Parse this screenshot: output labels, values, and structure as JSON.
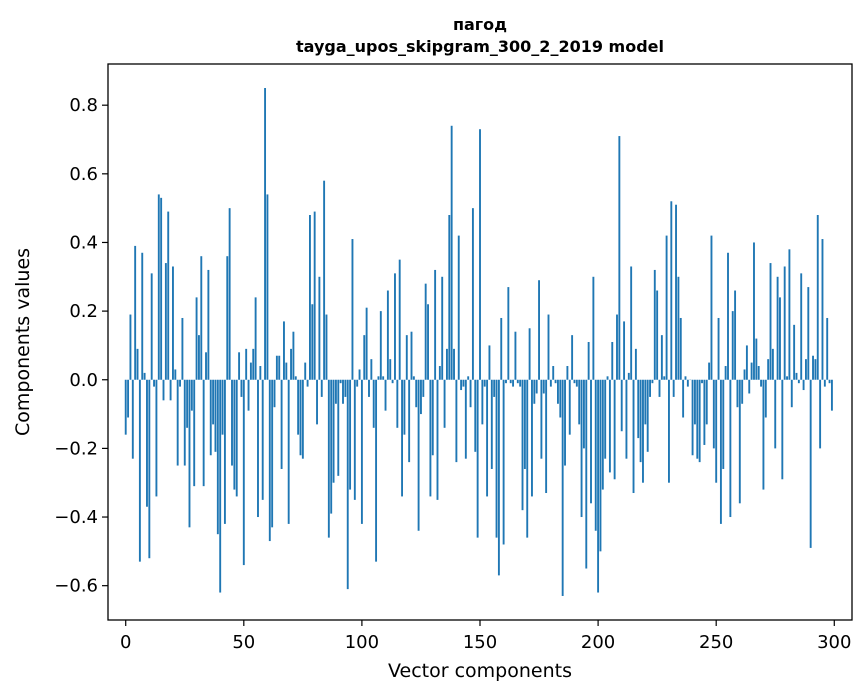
{
  "chart_data": {
    "type": "bar",
    "title_line1": "пагод",
    "title_line2": "tayga_upos_skipgram_300_2_2019 model",
    "xlabel": "Vector components",
    "ylabel": "Components values",
    "xlim": [
      -7.5,
      307.5
    ],
    "ylim": [
      -0.7,
      0.92
    ],
    "xticks": [
      0,
      50,
      100,
      150,
      200,
      250,
      300
    ],
    "xtick_labels": [
      "0",
      "50",
      "100",
      "150",
      "200",
      "250",
      "300"
    ],
    "yticks": [
      -0.6,
      -0.4,
      -0.2,
      0.0,
      0.2,
      0.4,
      0.6,
      0.8
    ],
    "ytick_labels": [
      "−0.6",
      "−0.4",
      "−0.2",
      "0.0",
      "0.2",
      "0.4",
      "0.6",
      "0.8"
    ],
    "bar_color": "#1f77b4",
    "series": [
      {
        "name": "components",
        "values": [
          -0.16,
          -0.11,
          0.19,
          -0.23,
          0.39,
          0.09,
          -0.53,
          0.37,
          0.02,
          -0.37,
          -0.52,
          0.31,
          -0.02,
          -0.34,
          0.54,
          0.53,
          -0.06,
          0.34,
          0.49,
          -0.06,
          0.33,
          0.03,
          -0.25,
          -0.02,
          0.18,
          -0.25,
          -0.14,
          -0.43,
          -0.09,
          -0.31,
          0.24,
          0.13,
          0.36,
          -0.31,
          0.08,
          0.32,
          -0.22,
          -0.13,
          -0.21,
          -0.45,
          -0.62,
          -0.16,
          -0.42,
          0.36,
          0.5,
          -0.25,
          -0.32,
          -0.34,
          0.08,
          -0.05,
          -0.54,
          0.09,
          -0.09,
          0.05,
          0.09,
          0.24,
          -0.4,
          0.04,
          -0.35,
          0.85,
          0.54,
          -0.47,
          -0.43,
          -0.08,
          0.07,
          0.07,
          -0.26,
          0.17,
          0.05,
          -0.42,
          0.09,
          0.14,
          0.01,
          -0.16,
          -0.22,
          -0.23,
          0.05,
          -0.02,
          0.48,
          0.22,
          0.49,
          -0.13,
          0.3,
          -0.05,
          0.58,
          0.19,
          -0.46,
          -0.39,
          -0.3,
          -0.07,
          -0.28,
          -0.01,
          -0.07,
          -0.05,
          -0.61,
          -0.32,
          0.41,
          -0.35,
          -0.02,
          0.03,
          -0.42,
          0.13,
          0.21,
          -0.05,
          0.06,
          -0.14,
          -0.53,
          0.01,
          0.2,
          0.01,
          -0.09,
          0.26,
          0.06,
          -0.01,
          0.31,
          -0.14,
          0.35,
          -0.34,
          -0.16,
          0.13,
          -0.24,
          0.14,
          0.01,
          -0.08,
          -0.44,
          -0.1,
          -0.05,
          0.28,
          0.22,
          -0.34,
          -0.22,
          0.32,
          -0.35,
          0.04,
          0.3,
          -0.14,
          0.09,
          0.48,
          0.74,
          0.09,
          -0.24,
          0.42,
          -0.03,
          -0.02,
          -0.23,
          0.01,
          -0.08,
          0.5,
          -0.21,
          -0.46,
          0.73,
          -0.13,
          -0.02,
          -0.34,
          0.1,
          -0.26,
          -0.05,
          -0.46,
          -0.57,
          0.18,
          -0.48,
          -0.01,
          0.27,
          -0.01,
          -0.02,
          0.14,
          -0.01,
          -0.02,
          -0.38,
          -0.26,
          -0.46,
          0.15,
          -0.34,
          -0.07,
          -0.04,
          0.29,
          -0.23,
          -0.04,
          -0.33,
          0.19,
          -0.02,
          0.04,
          -0.01,
          -0.07,
          -0.11,
          -0.63,
          -0.25,
          0.04,
          -0.16,
          0.13,
          -0.01,
          -0.02,
          -0.13,
          -0.4,
          -0.2,
          -0.55,
          0.11,
          -0.36,
          0.3,
          -0.44,
          -0.62,
          -0.5,
          -0.32,
          -0.23,
          0.01,
          -0.27,
          0.11,
          -0.29,
          0.19,
          0.71,
          -0.15,
          0.17,
          -0.23,
          0.02,
          0.33,
          -0.33,
          0.09,
          -0.17,
          -0.24,
          -0.3,
          -0.13,
          -0.21,
          -0.05,
          -0.01,
          0.32,
          0.26,
          -0.05,
          0.13,
          0.01,
          0.42,
          -0.3,
          0.52,
          -0.05,
          0.51,
          0.3,
          0.18,
          -0.11,
          0.01,
          -0.02,
          0.0,
          -0.22,
          -0.13,
          -0.23,
          -0.24,
          -0.01,
          -0.19,
          -0.13,
          0.05,
          0.42,
          -0.2,
          -0.3,
          0.18,
          -0.42,
          -0.26,
          0.04,
          0.37,
          -0.4,
          0.2,
          0.26,
          -0.08,
          -0.36,
          -0.07,
          0.03,
          0.1,
          -0.04,
          0.05,
          0.4,
          0.12,
          0.04,
          -0.02,
          -0.32,
          -0.11,
          0.06,
          0.34,
          0.09,
          -0.2,
          0.3,
          0.24,
          -0.29,
          0.33,
          0.01,
          0.38,
          -0.08,
          0.16,
          0.02,
          -0.01,
          0.31,
          -0.03,
          0.06,
          0.27,
          -0.49,
          0.07,
          0.06,
          0.48,
          -0.2,
          0.41,
          -0.02,
          0.18,
          -0.01,
          -0.09
        ]
      }
    ]
  }
}
